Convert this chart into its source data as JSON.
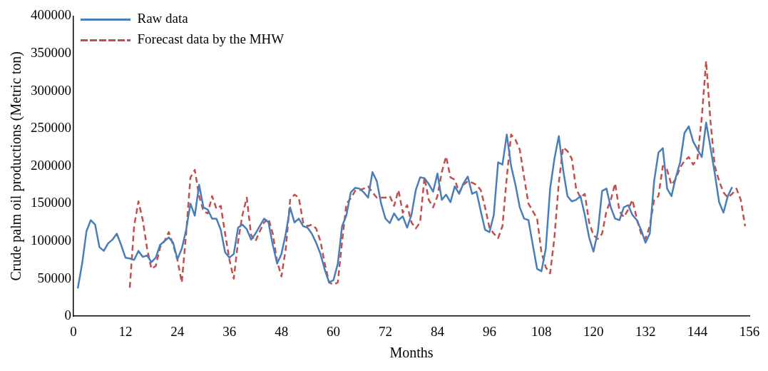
{
  "chart_data": {
    "type": "line",
    "xlabel": "Months",
    "ylabel": "Crude palm oil productions (Metric ton)",
    "xlim": [
      0,
      156
    ],
    "xticks": [
      0,
      12,
      24,
      36,
      48,
      60,
      72,
      84,
      96,
      108,
      120,
      132,
      144,
      156
    ],
    "ylim": [
      0,
      400000
    ],
    "yticks": [
      0,
      50000,
      100000,
      150000,
      200000,
      250000,
      300000,
      350000,
      400000
    ],
    "grid": false,
    "legend": "top left",
    "marker": "none",
    "series": [
      {
        "name": "Raw data",
        "color": "#4a7ebb",
        "line_style": "solid",
        "x": [
          1,
          2,
          3,
          4,
          5,
          6,
          7,
          8,
          9,
          10,
          11,
          12,
          13,
          14,
          15,
          16,
          17,
          18,
          19,
          20,
          21,
          22,
          23,
          24,
          25,
          26,
          27,
          28,
          29,
          30,
          31,
          32,
          33,
          34,
          35,
          36,
          37,
          38,
          39,
          40,
          41,
          42,
          43,
          44,
          45,
          46,
          47,
          48,
          49,
          50,
          51,
          52,
          53,
          54,
          55,
          56,
          57,
          58,
          59,
          60,
          61,
          62,
          63,
          64,
          65,
          66,
          67,
          68,
          69,
          70,
          71,
          72,
          73,
          74,
          75,
          76,
          77,
          78,
          79,
          80,
          81,
          82,
          83,
          84,
          85,
          86,
          87,
          88,
          89,
          90,
          91,
          92,
          93,
          94,
          95,
          96,
          97,
          98,
          99,
          100,
          101,
          102,
          103,
          104,
          105,
          106,
          107,
          108,
          109,
          110,
          111,
          112,
          113,
          114,
          115,
          116,
          117,
          118,
          119,
          120,
          121,
          122,
          123,
          124,
          125,
          126,
          127,
          128,
          129,
          130,
          131,
          132,
          133,
          134,
          135,
          136,
          137,
          138,
          139,
          140,
          141,
          142,
          143,
          144,
          145,
          146,
          147,
          148,
          149,
          150,
          151,
          152
        ],
        "values": [
          37000,
          70000,
          113000,
          128000,
          122000,
          92000,
          87000,
          97000,
          102000,
          110000,
          95000,
          78000,
          77000,
          75000,
          87000,
          79000,
          81000,
          72000,
          78000,
          95000,
          100000,
          105000,
          98000,
          76000,
          90000,
          115000,
          150000,
          134000,
          175000,
          145000,
          142000,
          130000,
          130000,
          115000,
          85000,
          78000,
          83000,
          118000,
          122000,
          116000,
          102000,
          110000,
          120000,
          130000,
          125000,
          95000,
          70000,
          83000,
          110000,
          145000,
          125000,
          130000,
          120000,
          118000,
          110000,
          98000,
          83000,
          62000,
          45000,
          48000,
          70000,
          120000,
          135000,
          165000,
          171000,
          170000,
          165000,
          158000,
          192000,
          180000,
          150000,
          130000,
          124000,
          137000,
          128000,
          133000,
          118000,
          135000,
          168000,
          185000,
          184000,
          176000,
          166000,
          190000,
          155000,
          162000,
          152000,
          173000,
          163000,
          177000,
          186000,
          163000,
          166000,
          140000,
          115000,
          112000,
          135000,
          205000,
          202000,
          242000,
          200000,
          175000,
          145000,
          130000,
          128000,
          95000,
          63000,
          60000,
          90000,
          170000,
          210000,
          240000,
          195000,
          160000,
          153000,
          155000,
          160000,
          135000,
          105000,
          86000,
          112000,
          167000,
          170000,
          145000,
          130000,
          128000,
          145000,
          148000,
          135000,
          128000,
          115000,
          98000,
          110000,
          180000,
          218000,
          224000,
          170000,
          160000,
          185000,
          205000,
          244000,
          253000,
          233000,
          222000,
          212000,
          258000,
          225000,
          190000,
          152000,
          138000,
          160000,
          172000
        ]
      },
      {
        "name": "Forecast data by the MHW",
        "color": "#c0504d",
        "line_style": "dashed",
        "x": [
          13,
          14,
          15,
          16,
          17,
          18,
          19,
          20,
          21,
          22,
          23,
          24,
          25,
          26,
          27,
          28,
          29,
          30,
          31,
          32,
          33,
          34,
          35,
          36,
          37,
          38,
          39,
          40,
          41,
          42,
          43,
          44,
          45,
          46,
          47,
          48,
          49,
          50,
          51,
          52,
          53,
          54,
          55,
          56,
          57,
          58,
          59,
          60,
          61,
          62,
          63,
          64,
          65,
          66,
          67,
          68,
          69,
          70,
          71,
          72,
          73,
          74,
          75,
          76,
          77,
          78,
          79,
          80,
          81,
          82,
          83,
          84,
          85,
          86,
          87,
          88,
          89,
          90,
          91,
          92,
          93,
          94,
          95,
          96,
          97,
          98,
          99,
          100,
          101,
          102,
          103,
          104,
          105,
          106,
          107,
          108,
          109,
          110,
          111,
          112,
          113,
          114,
          115,
          116,
          117,
          118,
          119,
          120,
          121,
          122,
          123,
          124,
          125,
          126,
          127,
          128,
          129,
          130,
          131,
          132,
          133,
          134,
          135,
          136,
          137,
          138,
          139,
          140,
          141,
          142,
          143,
          144,
          145,
          146,
          147,
          148,
          149,
          150,
          151,
          152,
          153,
          154,
          155
        ],
        "values": [
          38000,
          120000,
          153000,
          128000,
          90000,
          63000,
          67000,
          92000,
          100000,
          112000,
          95000,
          75000,
          45000,
          110000,
          185000,
          195000,
          160000,
          140000,
          137000,
          160000,
          143000,
          147000,
          110000,
          75000,
          50000,
          100000,
          135000,
          158000,
          108000,
          100000,
          113000,
          125000,
          130000,
          110000,
          73000,
          53000,
          90000,
          155000,
          162000,
          158000,
          125000,
          120000,
          122000,
          117000,
          100000,
          70000,
          45000,
          42000,
          45000,
          100000,
          150000,
          157000,
          167000,
          168000,
          170000,
          173000,
          165000,
          158000,
          158000,
          158000,
          160000,
          147000,
          168000,
          138000,
          148000,
          125000,
          117000,
          125000,
          185000,
          155000,
          145000,
          160000,
          192000,
          213000,
          185000,
          182000,
          165000,
          175000,
          180000,
          178000,
          175000,
          168000,
          145000,
          118000,
          110000,
          104000,
          120000,
          185000,
          242000,
          235000,
          222000,
          185000,
          150000,
          140000,
          130000,
          85000,
          65000,
          57000,
          105000,
          178000,
          225000,
          220000,
          210000,
          170000,
          158000,
          163000,
          125000,
          108000,
          103000,
          110000,
          140000,
          155000,
          177000,
          140000,
          132000,
          142000,
          155000,
          130000,
          110000,
          103000,
          120000,
          155000,
          160000,
          200000,
          195000,
          175000,
          183000,
          198000,
          207000,
          212000,
          202000,
          210000,
          265000,
          340000,
          260000,
          200000,
          180000,
          165000,
          158000,
          163000,
          170000,
          155000,
          120000
        ]
      }
    ]
  }
}
